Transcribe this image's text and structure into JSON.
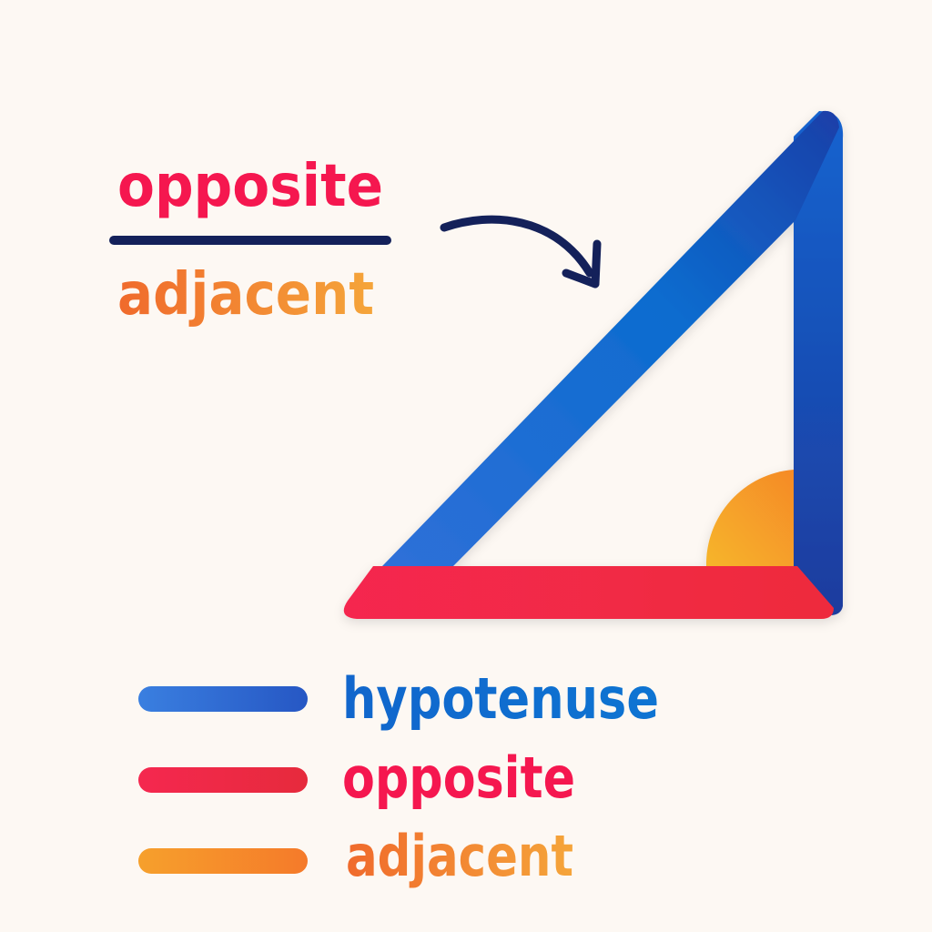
{
  "fraction": {
    "numerator": "opposite",
    "denominator": "adjacent"
  },
  "legend": {
    "items": [
      {
        "label": "hypotenuse",
        "color": "#1166cc"
      },
      {
        "label": "opposite",
        "color": "#f5174f"
      },
      {
        "label": "adjacent",
        "color": "#f58a27"
      }
    ]
  },
  "colors": {
    "background": "#fdf8f3",
    "fraction_bar": "#14215a",
    "arrow": "#14215a",
    "hypotenuse": "#1166cc",
    "opposite": "#f5174f",
    "adjacent": "#f58a27",
    "angle_marker": "#f59a22"
  }
}
